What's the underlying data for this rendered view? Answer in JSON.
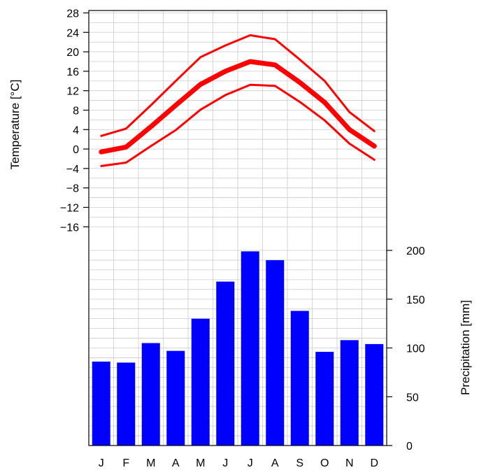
{
  "chart_data": {
    "type": "climate-diagram",
    "categories": [
      "J",
      "F",
      "M",
      "A",
      "M",
      "J",
      "J",
      "A",
      "S",
      "O",
      "N",
      "D"
    ],
    "temperature": {
      "ylabel": "Temperature [°C]",
      "ticks": [
        "28",
        "24",
        "20",
        "16",
        "12",
        "8",
        "4",
        "0",
        "−4",
        "−8",
        "−12",
        "−16"
      ],
      "tick_values": [
        28,
        24,
        20,
        16,
        12,
        8,
        4,
        0,
        -4,
        -8,
        -12,
        -16
      ],
      "ylim": [
        -16,
        28
      ],
      "color": "#ff0000",
      "series": [
        {
          "values": [
            2.7,
            4.2,
            9.0,
            14.0,
            18.9,
            21.3,
            23.4,
            22.6,
            18.4,
            14.0,
            7.6,
            3.7
          ]
        },
        {
          "values": [
            -0.6,
            0.4,
            4.6,
            9.0,
            13.3,
            16.0,
            18.0,
            17.3,
            13.7,
            9.6,
            4.0,
            0.6
          ]
        },
        {
          "values": [
            -3.5,
            -2.8,
            0.6,
            3.9,
            8.1,
            11.1,
            13.2,
            13.0,
            9.7,
            5.9,
            1.1,
            -2.2
          ]
        }
      ]
    },
    "precipitation": {
      "ylabel": "Precipitation [mm]",
      "ticks": [
        "200",
        "150",
        "100",
        "50",
        "0"
      ],
      "tick_values": [
        200,
        150,
        100,
        50,
        0
      ],
      "ylim": [
        0,
        200
      ],
      "color": "#0000ff",
      "values": [
        86,
        85,
        105,
        97,
        130,
        168,
        199,
        190,
        138,
        96,
        108,
        104
      ]
    },
    "grid": true
  }
}
